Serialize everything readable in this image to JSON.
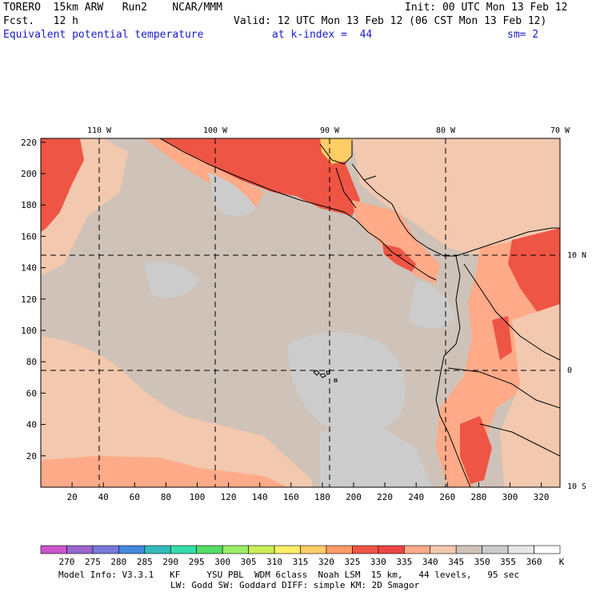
{
  "header": {
    "model": "TORERO  15km ARW   Run2    NCAR/MMM",
    "init": "Init: 00 UTC Mon 13 Feb 12",
    "fcst": "Fcst.   12 h",
    "valid": "Valid: 12 UTC Mon 13 Feb 12 (06 CST Mon 13 Feb 12)",
    "field": "Equivalent potential temperature",
    "level": "at k-index =  44",
    "smooth": "sm= 2"
  },
  "axes": {
    "top_lon_labels": [
      "110 W",
      "100 W",
      "90 W",
      "80 W",
      "70 W"
    ],
    "right_lat_labels": [
      "10 N",
      "0",
      "10 S"
    ],
    "y_ticks": [
      "20",
      "40",
      "60",
      "80",
      "100",
      "120",
      "140",
      "160",
      "180",
      "200",
      "220"
    ],
    "x_ticks": [
      "20",
      "40",
      "60",
      "80",
      "100",
      "120",
      "140",
      "160",
      "180",
      "200",
      "220",
      "240",
      "260",
      "280",
      "300",
      "320"
    ]
  },
  "colorbar": {
    "labels": [
      "270",
      "275",
      "280",
      "285",
      "290",
      "295",
      "300",
      "305",
      "310",
      "315",
      "320",
      "325",
      "330",
      "335",
      "340",
      "345",
      "350",
      "355",
      "360"
    ],
    "unit": "K",
    "colors": [
      "#cc55cc",
      "#9966cc",
      "#7777dd",
      "#4488dd",
      "#33bbbb",
      "#33ddaa",
      "#55dd66",
      "#99ee66",
      "#ccee55",
      "#ffee66",
      "#ffcc66",
      "#ff9966",
      "#ee5544",
      "#ee4444",
      "#ffaa88",
      "#f2c8ae",
      "#cfc2b8",
      "#cccccc",
      "#e6e6e6",
      "#ffffff"
    ]
  },
  "footer": {
    "line1": "Model Info: V3.3.1   KF     YSU PBL  WDM 6class  Noah LSM  15 km,   44 levels,   95 sec",
    "line2": "LW: Godd SW: Goddard DIFF: simple KM: 2D Smagor"
  },
  "map_colors": {
    "base": "#cfc2b8",
    "light_gray": "#cccccc",
    "peach": "#f2c8ae",
    "salmon": "#ffaa88",
    "red": "#ee5544",
    "orange": "#ffcc66"
  }
}
